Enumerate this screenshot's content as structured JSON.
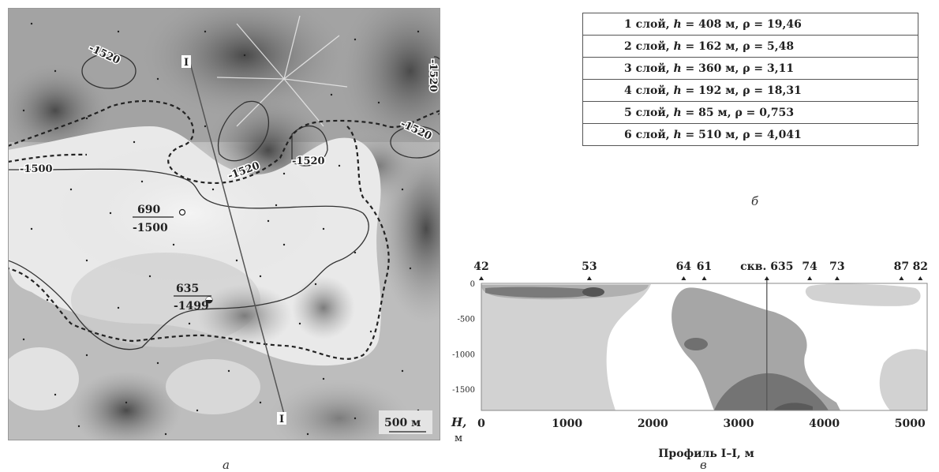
{
  "panel_a": {
    "caption": "а",
    "isolines": [
      "-1520",
      "-1520",
      "-1520",
      "-1520",
      "-1520",
      "-1500"
    ],
    "wells": [
      {
        "number": "690",
        "depth": "-1500"
      },
      {
        "number": "635",
        "depth": "-1499"
      }
    ],
    "profile_start_label": "I",
    "profile_end_label": "I",
    "scale_label": "500 м"
  },
  "panel_b": {
    "caption": "б",
    "layers": [
      {
        "n": "1",
        "h": "408",
        "rho": "19,46"
      },
      {
        "n": "2",
        "h": "162",
        "rho": "5,48"
      },
      {
        "n": "3",
        "h": "360",
        "rho": "3,11"
      },
      {
        "n": "4",
        "h": "192",
        "rho": "18,31"
      },
      {
        "n": "5",
        "h": "85",
        "rho": "0,753"
      },
      {
        "n": "6",
        "h": "510",
        "rho": "4,041"
      }
    ]
  },
  "panel_c": {
    "caption": "в",
    "xlabel": "Профиль I–I, м",
    "ylabel_top": "H,",
    "ylabel_bottom": "м",
    "x_ticks": [
      "0",
      "1000",
      "2000",
      "3000",
      "4000",
      "5000"
    ],
    "y_ticks": [
      "0",
      "-500",
      "-1000",
      "-1500"
    ],
    "stations": [
      {
        "label": "42",
        "x": 0
      },
      {
        "label": "53",
        "x": 1260
      },
      {
        "label": "64",
        "x": 2360
      },
      {
        "label": "61",
        "x": 2600
      },
      {
        "label": "скв. 635",
        "x": 3330
      },
      {
        "label": "74",
        "x": 3830
      },
      {
        "label": "73",
        "x": 4150
      },
      {
        "label": "87",
        "x": 4900
      },
      {
        "label": "82",
        "x": 5120
      }
    ],
    "well_x": 3330,
    "xlim": [
      0,
      5200
    ],
    "ylim": [
      -1800,
      0
    ]
  },
  "colors": {
    "map_background": "#cfcfcf",
    "map_dark": "#6e6e6e",
    "section_light": "#d2d2d2",
    "section_mid": "#a6a6a6",
    "section_dark": "#707070"
  }
}
